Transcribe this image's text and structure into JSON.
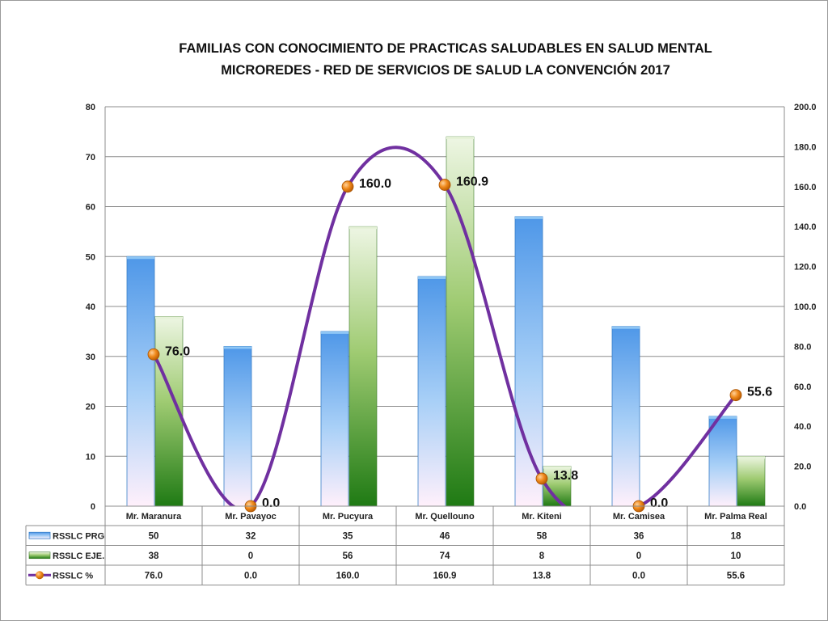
{
  "chart_data": {
    "type": "bar",
    "title": "FAMILIAS CON CONOCIMIENTO DE PRACTICAS SALUDABLES EN SALUD MENTAL",
    "subtitle": "MICROREDES - RED DE SERVICIOS DE SALUD LA CONVENCIÓN 2017",
    "categories": [
      "Mr. Maranura",
      "Mr. Pavayoc",
      "Mr. Pucyura",
      "Mr. Quellouno",
      "Mr. Kiteni",
      "Mr. Camisea",
      "Mr. Palma Real"
    ],
    "series": [
      {
        "name": "RSSLC PRG",
        "type": "bar",
        "axis": "left",
        "color": "#5aa0ea",
        "values": [
          50,
          32,
          35,
          46,
          58,
          36,
          18
        ]
      },
      {
        "name": "RSSLC EJE.",
        "type": "bar",
        "axis": "left",
        "color": "#3f8f2a",
        "values": [
          38,
          0,
          56,
          74,
          8,
          0,
          10
        ]
      },
      {
        "name": "RSSLC %",
        "type": "line",
        "axis": "right",
        "color": "#7030a0",
        "marker_color": "#f08a1c",
        "smooth": true,
        "values": [
          76.0,
          0.0,
          160.0,
          160.9,
          13.8,
          0.0,
          55.6
        ],
        "labels": [
          "76.0",
          "0.0",
          "160.0",
          "160.9",
          "13.8",
          "0.0",
          "55.6"
        ]
      }
    ],
    "y_left": {
      "min": 0,
      "max": 80,
      "step": 10,
      "ticks": [
        "0",
        "10",
        "20",
        "30",
        "40",
        "50",
        "60",
        "70",
        "80"
      ]
    },
    "y_right": {
      "min": 0,
      "max": 200,
      "step": 20,
      "ticks": [
        "0.0",
        "20.0",
        "40.0",
        "60.0",
        "80.0",
        "100.0",
        "120.0",
        "140.0",
        "160.0",
        "180.0",
        "200.0"
      ]
    },
    "grid": true,
    "legend": "data-table-below",
    "table": {
      "rows": [
        {
          "label": "RSSLC PRG",
          "cells": [
            "50",
            "32",
            "35",
            "46",
            "58",
            "36",
            "18"
          ]
        },
        {
          "label": "RSSLC EJE.",
          "cells": [
            "38",
            "0",
            "56",
            "74",
            "8",
            "0",
            "10"
          ]
        },
        {
          "label": "RSSLC %",
          "cells": [
            "76.0",
            "0.0",
            "160.0",
            "160.9",
            "13.8",
            "0.0",
            "55.6"
          ]
        }
      ]
    }
  }
}
